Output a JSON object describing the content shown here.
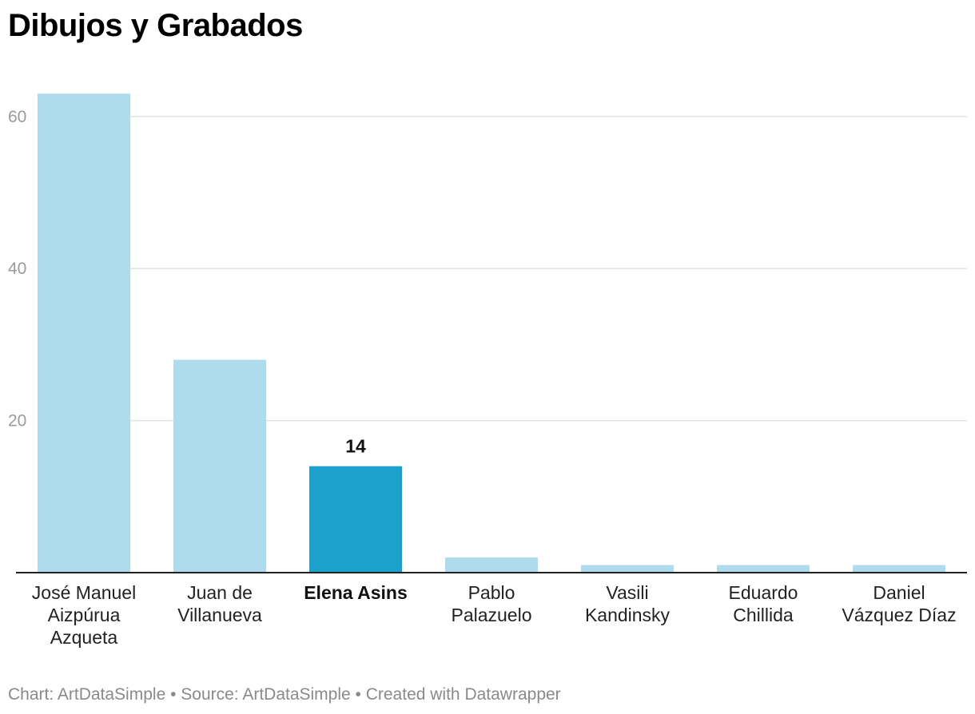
{
  "title": "Dibujos y Grabados",
  "footer": {
    "text": "Chart: ArtDataSimple • Source: ArtDataSimple • Created with Datawrapper"
  },
  "colors": {
    "bar": "#aedcec",
    "highlight": "#1ba1cc",
    "grid": "#e3e3e3",
    "axis": "#222222"
  },
  "chart_data": {
    "type": "bar",
    "title": "Dibujos y Grabados",
    "categories": [
      [
        "José Manuel",
        "Aizpúrua",
        "Azqueta"
      ],
      [
        "Juan de",
        "Villanueva"
      ],
      [
        "Elena Asins"
      ],
      [
        "Pablo",
        "Palazuelo"
      ],
      [
        "Vasili",
        "Kandinsky"
      ],
      [
        "Eduardo",
        "Chillida"
      ],
      [
        "Daniel",
        "Vázquez Díaz"
      ]
    ],
    "values": [
      63,
      28,
      14,
      2,
      1,
      1,
      1
    ],
    "highlight_index": 2,
    "highlight_label": "14",
    "yticks": [
      "20",
      "40",
      "60"
    ],
    "ylim": [
      0,
      60
    ],
    "xlabel": "",
    "ylabel": "",
    "grid": true
  }
}
